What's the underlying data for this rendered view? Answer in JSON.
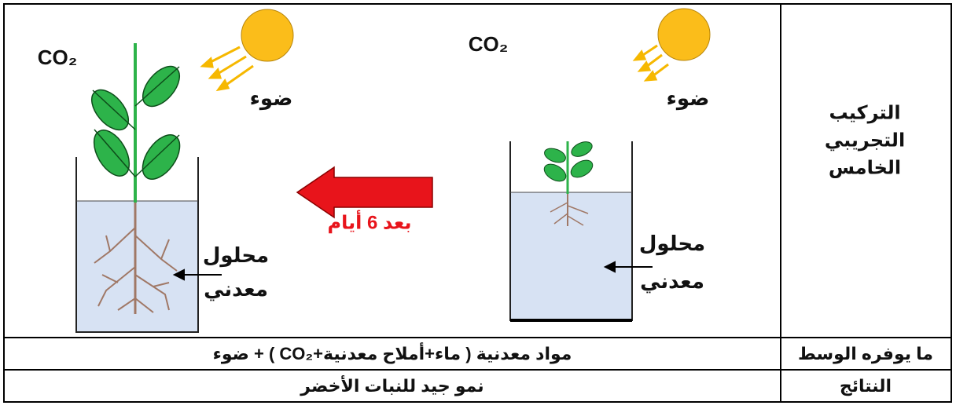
{
  "setup_header": [
    "التركيب",
    "التجريبي",
    "الخامس"
  ],
  "before": {
    "gas": "CO₂",
    "light": "ضوء",
    "solution": [
      "محلول",
      "معدني"
    ]
  },
  "transition": "بعد 6 أيام",
  "after": {
    "gas": "CO₂",
    "light": "ضوء",
    "solution": [
      "محلول",
      "معدني"
    ]
  },
  "medium": {
    "header": "ما يوفره الوسط",
    "content": "مواد معدنية ( ماء+أملاح معدنية+CO₂ ) + ضوء"
  },
  "results": {
    "header": "النتائج",
    "content": "نمو جيد للنبات الأخضر"
  }
}
